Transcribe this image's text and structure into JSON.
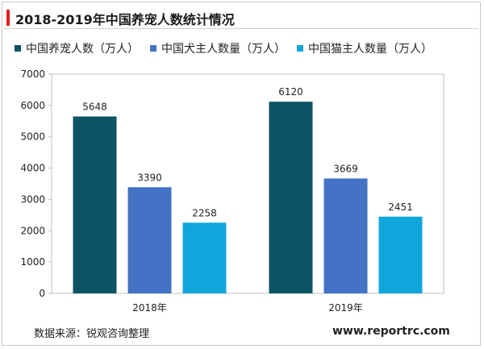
{
  "header": {
    "title": "2018-2019年中国养宠人数统计情况"
  },
  "footer": {
    "source": "数据来源：锐观咨询整理",
    "website": "www.reportrc.com"
  },
  "colors": {
    "accent": "#e02020",
    "series1": "#0d5366",
    "series2": "#4472c4",
    "series3": "#10a6dc"
  },
  "chart_data": {
    "type": "bar",
    "title": "2018-2019年中国养宠人数统计情况",
    "categories": [
      "2018年",
      "2019年"
    ],
    "series": [
      {
        "name": "中国养宠人数（万人）",
        "values": [
          5648,
          6120
        ]
      },
      {
        "name": "中国犬主人数量（万人）",
        "values": [
          3390,
          3669
        ]
      },
      {
        "name": "中国猫主人数量（万人）",
        "values": [
          2258,
          2451
        ]
      }
    ],
    "ylim": [
      0,
      7000
    ],
    "yticks": [
      0,
      1000,
      2000,
      3000,
      4000,
      5000,
      6000,
      7000
    ],
    "grid": false,
    "legend": "top",
    "xlabel": "",
    "ylabel": ""
  }
}
